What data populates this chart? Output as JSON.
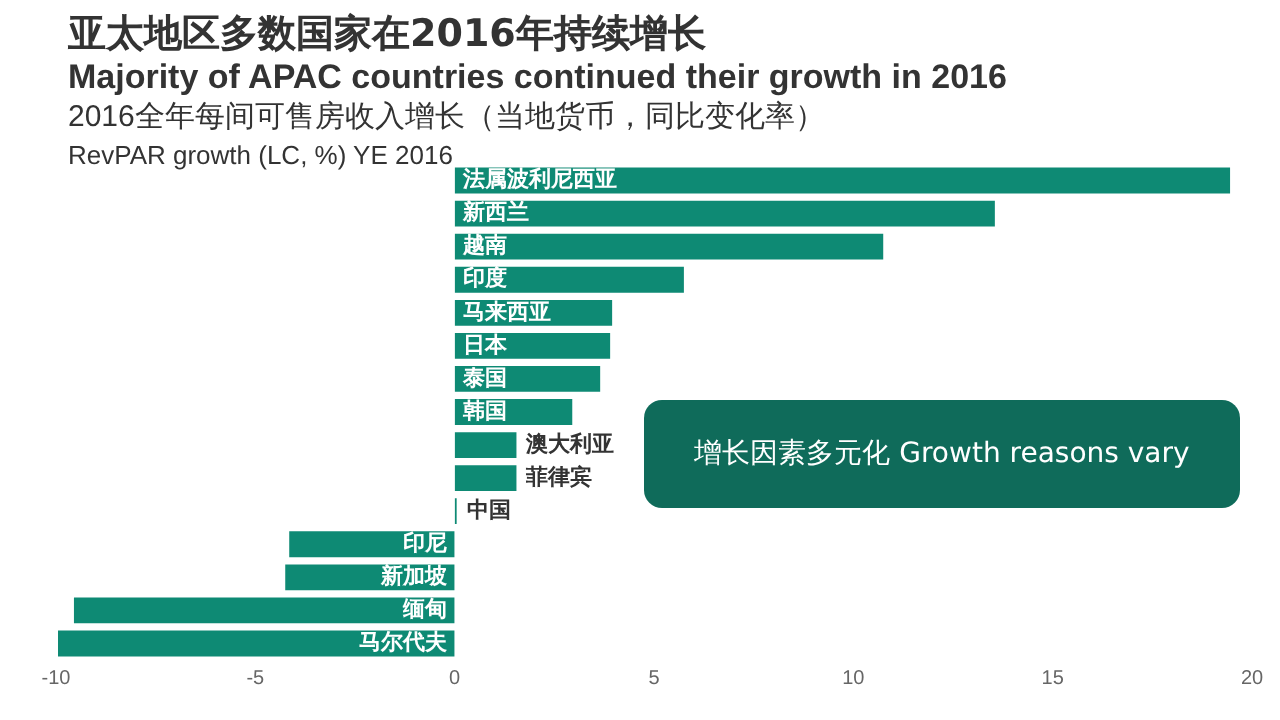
{
  "chart_data": {
    "type": "bar",
    "orientation": "horizontal",
    "title": "亚太地区多数国家在2016年持续增长",
    "subtitle": "Majority of APAC countries continued their growth in 2016",
    "annotations": [
      "2016全年每间可售房收入增长（当地货币，同比变化率）",
      "RevPAR growth (LC, %) YE 2016",
      "增长因素多元化 Growth reasons vary"
    ],
    "categories": [
      "法属波利尼西亚",
      "新西兰",
      "越南",
      "印度",
      "马来西亚",
      "日本",
      "泰国",
      "韩国",
      "澳大利亚",
      "菲律宾",
      "中国",
      "印尼",
      "新加坡",
      "缅甸",
      "马尔代夫"
    ],
    "values": [
      19.5,
      13.6,
      10.8,
      5.8,
      4.0,
      3.95,
      3.7,
      3.0,
      1.6,
      1.6,
      0.1,
      -4.2,
      -4.3,
      -9.6,
      -10.0
    ],
    "color": "#0e8a74",
    "xlim": [
      -10,
      20
    ],
    "xticks": [
      -10,
      -5,
      0,
      5,
      10,
      15,
      20
    ],
    "grid": false,
    "legend": false
  }
}
